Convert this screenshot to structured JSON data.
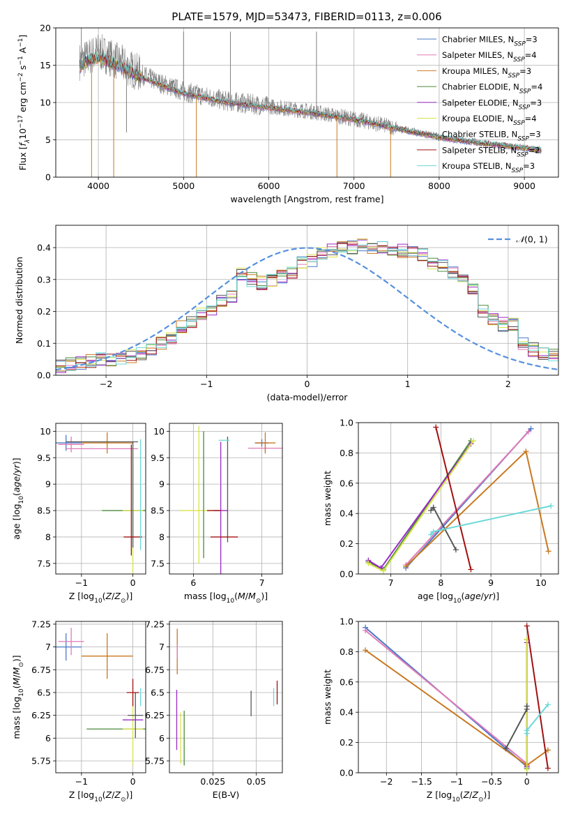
{
  "title": "PLATE=1579, MJD=53473, FIBERID=0113, z=0.006",
  "colors": {
    "Chabrier MILES": "#4a78c8",
    "Salpeter MILES": "#e07ab8",
    "Kroupa MILES": "#c8781e",
    "Chabrier ELODIE": "#4a8a3c",
    "Salpeter ELODIE": "#9a2ac8",
    "Kroupa ELODIE": "#d8e24a",
    "Chabrier STELIB": "#555555",
    "Salpeter STELIB": "#a01010",
    "Kroupa STELIB": "#6ad8d8",
    "observed": "#808080",
    "normal": "#5590dd"
  },
  "chart_data": [
    {
      "id": "spectrum",
      "type": "line",
      "xlabel": "wavelength [Angstrom, rest frame]",
      "ylabel": "Flux [f_λ 10^-17 erg cm^-2 s^-1 A^-1]",
      "xlim": [
        3500,
        9400
      ],
      "ylim": [
        0,
        20
      ],
      "xticks": [
        4000,
        5000,
        6000,
        7000,
        8000,
        9000
      ],
      "yticks": [
        0,
        5,
        10,
        15,
        20
      ],
      "legend_position": "top-right",
      "legend": [
        "Chabrier MILES, N_SSP=3",
        "Salpeter MILES, N_SSP=4",
        "Kroupa MILES, N_SSP=3",
        "Chabrier ELODIE, N_SSP=4",
        "Salpeter ELODIE, N_SSP=3",
        "Kroupa ELODIE, N_SSP=4",
        "Chabrier STELIB, N_SSP=3",
        "Salpeter STELIB, N_SSP=2",
        "Kroupa STELIB, N_SSP=3"
      ],
      "observed_continuum": [
        [
          3780,
          15.5
        ],
        [
          3900,
          16.2
        ],
        [
          4000,
          16.8
        ],
        [
          4100,
          16.3
        ],
        [
          4300,
          15.0
        ],
        [
          4500,
          13.8
        ],
        [
          4700,
          12.7
        ],
        [
          5000,
          11.5
        ],
        [
          5500,
          10.2
        ],
        [
          6000,
          9.5
        ],
        [
          6500,
          8.8
        ],
        [
          7000,
          7.8
        ],
        [
          7500,
          6.6
        ],
        [
          8000,
          5.4
        ],
        [
          8500,
          4.6
        ],
        [
          9000,
          3.9
        ],
        [
          9200,
          3.7
        ]
      ],
      "model_continuum": [
        [
          3780,
          14.8
        ],
        [
          3900,
          15.8
        ],
        [
          4000,
          16.0
        ],
        [
          4100,
          15.6
        ],
        [
          4300,
          14.6
        ],
        [
          4500,
          13.4
        ],
        [
          4700,
          12.5
        ],
        [
          5000,
          11.2
        ],
        [
          5500,
          10.0
        ],
        [
          6000,
          9.3
        ],
        [
          6500,
          8.6
        ],
        [
          7000,
          7.7
        ],
        [
          7500,
          6.5
        ],
        [
          8000,
          5.3
        ],
        [
          8500,
          4.5
        ],
        [
          9000,
          3.9
        ],
        [
          9150,
          3.6
        ]
      ],
      "spikes": [
        [
          3800,
          20
        ],
        [
          3920,
          0
        ],
        [
          4180,
          0
        ],
        [
          4330,
          6.0
        ],
        [
          5000,
          19.5
        ],
        [
          5150,
          0
        ],
        [
          5550,
          19.5
        ],
        [
          6560,
          19.5
        ],
        [
          6800,
          0
        ],
        [
          7430,
          0
        ]
      ]
    },
    {
      "id": "residuals",
      "type": "histogram",
      "xlabel": "(data-model)/error",
      "ylabel": "Normed distribution",
      "xlim": [
        -2.5,
        2.5
      ],
      "ylim": [
        0,
        0.47
      ],
      "xticks": [
        -2,
        -1,
        0,
        1,
        2
      ],
      "yticks": [
        0.0,
        0.1,
        0.2,
        0.3,
        0.4
      ],
      "legend_position": "top-right",
      "legend": [
        "N(0,1)"
      ],
      "bin_width": 0.1,
      "bin_start": -2.5,
      "base_values": [
        0.03,
        0.035,
        0.04,
        0.045,
        0.05,
        0.05,
        0.055,
        0.06,
        0.07,
        0.085,
        0.1,
        0.12,
        0.15,
        0.17,
        0.19,
        0.21,
        0.23,
        0.25,
        0.32,
        0.3,
        0.29,
        0.3,
        0.31,
        0.32,
        0.35,
        0.36,
        0.38,
        0.39,
        0.4,
        0.4,
        0.41,
        0.4,
        0.4,
        0.39,
        0.39,
        0.39,
        0.38,
        0.35,
        0.34,
        0.32,
        0.3,
        0.27,
        0.2,
        0.18,
        0.16,
        0.16,
        0.1,
        0.08,
        0.07,
        0.06,
        0.06,
        0.05,
        0.045,
        0.04,
        0.035
      ]
    },
    {
      "id": "age-vs-Z",
      "type": "errorbar",
      "xlabel": "Z [log10(Z/Z⊙)]",
      "ylabel": "age [log10(age/yr)]",
      "xlim": [
        -1.5,
        0.25
      ],
      "ylim": [
        7.3,
        10.15
      ],
      "xticks": [
        -1,
        0
      ],
      "yticks": [
        7.5,
        8.0,
        8.5,
        9.0,
        9.5,
        10.0
      ],
      "points": [
        {
          "model": "Chabrier MILES",
          "x": -1.3,
          "y": 9.78,
          "xerr": 0.3,
          "yerr": 0.15
        },
        {
          "model": "Salpeter MILES",
          "x": -1.2,
          "y": 9.75,
          "xerr": 0.25,
          "yerr": 0.15
        },
        {
          "model": "Kroupa MILES",
          "x": -0.5,
          "y": 9.78,
          "xerr": 0.5,
          "yerr": 0.2
        },
        {
          "model": "Salpeter MILES",
          "x": -0.6,
          "y": 9.67,
          "xerr": 0.7,
          "yerr": 0.0
        },
        {
          "model": "Chabrier ELODIE",
          "x": 0.0,
          "y": 8.5,
          "xerr": 0.6,
          "yerr": 0.0
        },
        {
          "model": "Kroupa ELODIE",
          "x": 0.0,
          "y": 8.5,
          "xerr": 0.2,
          "yerr": 1.3
        },
        {
          "model": "Chabrier STELIB",
          "x": 0.0,
          "y": 8.8,
          "xerr": 0.0,
          "yerr": 1.0
        },
        {
          "model": "Salpeter STELIB",
          "x": 0.0,
          "y": 8.0,
          "xerr": 0.18,
          "yerr": 0.0
        },
        {
          "model": "Salpeter STELIB",
          "x": -0.03,
          "y": 8.7,
          "xerr": 0.0,
          "yerr": 1.05
        },
        {
          "model": "Kroupa STELIB",
          "x": 0.15,
          "y": 8.8,
          "xerr": 0.0,
          "yerr": 1.05
        },
        {
          "model": "Chabrier STELIB",
          "x": -0.6,
          "y": 9.8,
          "xerr": 0.7,
          "yerr": 0.0
        }
      ]
    },
    {
      "id": "age-vs-mass",
      "type": "errorbar",
      "xlabel": "mass [log10(M/M⊙)]",
      "ylabel": "",
      "xlim": [
        5.65,
        7.3
      ],
      "ylim": [
        7.3,
        10.15
      ],
      "xticks": [
        6,
        7
      ],
      "yticks": [
        7.5,
        8.0,
        8.5,
        9.0,
        9.5,
        10.0
      ],
      "points": [
        {
          "model": "Kroupa ELODIE",
          "x": 6.1,
          "y": 8.5,
          "xerr": 0.3,
          "yerr": 0.0
        },
        {
          "model": "Kroupa ELODIE",
          "x": 6.08,
          "y": 8.8,
          "xerr": 0.0,
          "yerr": 1.3
        },
        {
          "model": "Chabrier ELODIE",
          "x": 6.15,
          "y": 8.8,
          "xerr": 0.0,
          "yerr": 1.2
        },
        {
          "model": "Salpeter ELODIE",
          "x": 6.4,
          "y": 8.5,
          "xerr": 0.1,
          "yerr": 1.3
        },
        {
          "model": "Chabrier STELIB",
          "x": 6.5,
          "y": 8.9,
          "xerr": 0.0,
          "yerr": 1.0
        },
        {
          "model": "Salpeter STELIB",
          "x": 6.45,
          "y": 8.0,
          "xerr": 0.2,
          "yerr": 0.0
        },
        {
          "model": "Salpeter STELIB",
          "x": 6.3,
          "y": 8.5,
          "xerr": 0.1,
          "yerr": 0.0
        },
        {
          "model": "Kroupa STELIB",
          "x": 6.45,
          "y": 9.83,
          "xerr": 0.08,
          "yerr": 0.0
        },
        {
          "model": "Chabrier MILES",
          "x": 7.0,
          "y": 9.78,
          "xerr": 0.1,
          "yerr": 0.07
        },
        {
          "model": "Salpeter MILES",
          "x": 7.05,
          "y": 9.68,
          "xerr": 0.25,
          "yerr": 0.08
        },
        {
          "model": "Kroupa MILES",
          "x": 7.05,
          "y": 9.78,
          "xerr": 0.15,
          "yerr": 0.2
        }
      ]
    },
    {
      "id": "weight-vs-age",
      "type": "line",
      "xlabel": "age [log10(age/yr)]",
      "ylabel": "mass weight",
      "xlim": [
        6.35,
        10.35
      ],
      "ylim": [
        0,
        1.0
      ],
      "xticks": [
        7,
        8,
        9,
        10
      ],
      "yticks": [
        0.0,
        0.2,
        0.4,
        0.6,
        0.8,
        1.0
      ],
      "series": [
        {
          "model": "Chabrier MILES",
          "x": [
            7.3,
            9.8
          ],
          "y": [
            0.04,
            0.96
          ]
        },
        {
          "model": "Salpeter MILES",
          "x": [
            7.3,
            9.75
          ],
          "y": [
            0.06,
            0.94
          ]
        },
        {
          "model": "Kroupa MILES",
          "x": [
            7.3,
            9.7,
            10.15
          ],
          "y": [
            0.05,
            0.81,
            0.15
          ]
        },
        {
          "model": "Chabrier ELODIE",
          "x": [
            6.55,
            6.85,
            8.6
          ],
          "y": [
            0.08,
            0.03,
            0.88
          ]
        },
        {
          "model": "Salpeter ELODIE",
          "x": [
            6.55,
            6.8,
            8.6
          ],
          "y": [
            0.09,
            0.04,
            0.86
          ]
        },
        {
          "model": "Kroupa ELODIE",
          "x": [
            6.55,
            6.85,
            8.65
          ],
          "y": [
            0.07,
            0.02,
            0.88
          ]
        },
        {
          "model": "Chabrier STELIB",
          "x": [
            7.8,
            7.85,
            8.3
          ],
          "y": [
            0.42,
            0.44,
            0.16
          ]
        },
        {
          "model": "Salpeter STELIB",
          "x": [
            7.9,
            8.6
          ],
          "y": [
            0.97,
            0.03
          ]
        },
        {
          "model": "Kroupa STELIB",
          "x": [
            7.8,
            7.85,
            10.2
          ],
          "y": [
            0.26,
            0.28,
            0.45
          ]
        }
      ]
    },
    {
      "id": "mass-vs-Z",
      "type": "errorbar",
      "xlabel": "Z [log10(Z/Z⊙)]",
      "ylabel": "mass [log10(M/M⊙)]",
      "xlim": [
        -1.5,
        0.25
      ],
      "ylim": [
        5.62,
        7.28
      ],
      "xticks": [
        -1,
        0
      ],
      "yticks": [
        5.75,
        6.0,
        6.25,
        6.5,
        6.75,
        7.0,
        7.25
      ],
      "points": [
        {
          "model": "Chabrier MILES",
          "x": -1.3,
          "y": 7.0,
          "xerr": 0.3,
          "yerr": 0.15
        },
        {
          "model": "Salpeter MILES",
          "x": -1.2,
          "y": 7.06,
          "xerr": 0.25,
          "yerr": 0.15
        },
        {
          "model": "Kroupa MILES",
          "x": -0.5,
          "y": 6.9,
          "xerr": 0.5,
          "yerr": 0.25
        },
        {
          "model": "Chabrier ELODIE",
          "x": -0.3,
          "y": 6.1,
          "xerr": 0.6,
          "yerr": 0.0
        },
        {
          "model": "Kroupa ELODIE",
          "x": 0.0,
          "y": 6.1,
          "xerr": 0.2,
          "yerr": 0.4
        },
        {
          "model": "Salpeter ELODIE",
          "x": 0.0,
          "y": 6.2,
          "xerr": 0.2,
          "yerr": 0.0
        },
        {
          "model": "Chabrier STELIB",
          "x": 0.05,
          "y": 6.25,
          "xerr": 0.15,
          "yerr": 0.25
        },
        {
          "model": "Salpeter STELIB",
          "x": 0.0,
          "y": 6.5,
          "xerr": 0.12,
          "yerr": 0.15
        },
        {
          "model": "Kroupa STELIB",
          "x": 0.15,
          "y": 6.45,
          "xerr": 0.0,
          "yerr": 0.1
        }
      ]
    },
    {
      "id": "mass-vs-EBV",
      "type": "errorbar",
      "xlabel": "E(B-V)",
      "ylabel": "",
      "xlim": [
        0.0,
        0.065
      ],
      "ylim": [
        5.62,
        7.28
      ],
      "xticks": [
        0.025,
        0.05
      ],
      "yticks": [
        5.75,
        6.0,
        6.25,
        6.5,
        6.75,
        7.0,
        7.25
      ],
      "points": [
        {
          "model": "Kroupa MILES",
          "x": 0.0045,
          "y": 6.95,
          "xerr": 0.0,
          "yerr": 0.25
        },
        {
          "model": "Salpeter MILES",
          "x": 0.0045,
          "y": 6.95,
          "xerr": 0.0,
          "yerr": 0.08
        },
        {
          "model": "Salpeter ELODIE",
          "x": 0.0042,
          "y": 6.2,
          "xerr": 0.0,
          "yerr": 0.33
        },
        {
          "model": "Kroupa ELODIE",
          "x": 0.0065,
          "y": 6.0,
          "xerr": 0.0,
          "yerr": 0.28
        },
        {
          "model": "Chabrier ELODIE",
          "x": 0.0085,
          "y": 6.0,
          "xerr": 0.0,
          "yerr": 0.3
        },
        {
          "model": "Chabrier STELIB",
          "x": 0.047,
          "y": 6.38,
          "xerr": 0.0,
          "yerr": 0.14
        },
        {
          "model": "Kroupa STELIB",
          "x": 0.06,
          "y": 6.45,
          "xerr": 0.0,
          "yerr": 0.1
        },
        {
          "model": "Salpeter STELIB",
          "x": 0.062,
          "y": 6.5,
          "xerr": 0.0,
          "yerr": 0.13
        }
      ]
    },
    {
      "id": "weight-vs-Z",
      "type": "line",
      "xlabel": "Z [log10(Z/Z⊙)]",
      "ylabel": "mass weight",
      "xlim": [
        -2.4,
        0.45
      ],
      "ylim": [
        0,
        1.0
      ],
      "xticks": [
        -2.0,
        -1.5,
        -1.0,
        -0.5,
        0.0
      ],
      "yticks": [
        0.0,
        0.2,
        0.4,
        0.6,
        0.8,
        1.0
      ],
      "series": [
        {
          "model": "Chabrier MILES",
          "x": [
            -2.3,
            0.0
          ],
          "y": [
            0.96,
            0.04
          ]
        },
        {
          "model": "Salpeter MILES",
          "x": [
            -2.3,
            0.0
          ],
          "y": [
            0.94,
            0.06
          ]
        },
        {
          "model": "Kroupa MILES",
          "x": [
            -2.3,
            0.0,
            0.3
          ],
          "y": [
            0.81,
            0.05,
            0.15
          ]
        },
        {
          "model": "Chabrier ELODIE",
          "x": [
            0.0,
            0.0
          ],
          "y": [
            0.88,
            0.03
          ]
        },
        {
          "model": "Salpeter ELODIE",
          "x": [
            0.0,
            0.0
          ],
          "y": [
            0.86,
            0.04
          ]
        },
        {
          "model": "Kroupa ELODIE",
          "x": [
            0.0,
            0.0
          ],
          "y": [
            0.88,
            0.02
          ]
        },
        {
          "model": "Chabrier STELIB",
          "x": [
            -0.3,
            0.0,
            0.0
          ],
          "y": [
            0.16,
            0.42,
            0.44
          ]
        },
        {
          "model": "Salpeter STELIB",
          "x": [
            0.0,
            0.3
          ],
          "y": [
            0.97,
            0.03
          ]
        },
        {
          "model": "Kroupa STELIB",
          "x": [
            0.0,
            0.0,
            0.3
          ],
          "y": [
            0.26,
            0.28,
            0.45
          ]
        }
      ]
    }
  ]
}
